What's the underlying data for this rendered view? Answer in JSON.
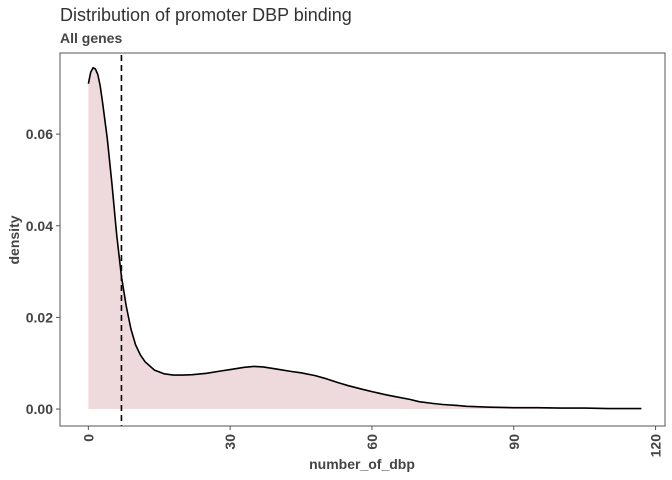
{
  "chart_data": {
    "type": "area",
    "title": "Distribution of promoter DBP binding",
    "subtitle": "All genes",
    "xlabel": "number_of_dbp",
    "ylabel": "density",
    "xlim": [
      -6,
      122
    ],
    "ylim": [
      -0.0037,
      0.0777
    ],
    "x_ticks": [
      0,
      30,
      60,
      90,
      120
    ],
    "x_tick_labels": [
      "0",
      "30",
      "60",
      "90",
      "120"
    ],
    "y_ticks": [
      0.0,
      0.02,
      0.04,
      0.06
    ],
    "y_tick_labels": [
      "0.00",
      "0.02",
      "0.04",
      "0.06"
    ],
    "grid": false,
    "vline": {
      "x": 7,
      "style": "dashed",
      "color": "#000000"
    },
    "fill_color": "#eed9dc",
    "line_color": "#000000",
    "series": [
      {
        "x": [
          0,
          0.5,
          1,
          1.5,
          2,
          2.5,
          3,
          4,
          5,
          6,
          7,
          8,
          9,
          10,
          11,
          12,
          14,
          16,
          18,
          20,
          22,
          25,
          28,
          30,
          33,
          35,
          37,
          40,
          43,
          45,
          48,
          50,
          53,
          55,
          58,
          60,
          63,
          65,
          68,
          70,
          73,
          75,
          78,
          80,
          85,
          90,
          95,
          100,
          105,
          110,
          115,
          117
        ],
        "y": [
          0.071,
          0.0735,
          0.0745,
          0.0742,
          0.073,
          0.0705,
          0.067,
          0.059,
          0.049,
          0.038,
          0.029,
          0.0225,
          0.0175,
          0.014,
          0.0118,
          0.0103,
          0.0085,
          0.0077,
          0.0074,
          0.0074,
          0.0075,
          0.0078,
          0.0083,
          0.0086,
          0.0091,
          0.0093,
          0.0092,
          0.0087,
          0.0082,
          0.0079,
          0.0073,
          0.0067,
          0.0057,
          0.0051,
          0.0043,
          0.0038,
          0.0031,
          0.0027,
          0.0021,
          0.0016,
          0.0012,
          0.001,
          0.0008,
          0.0006,
          0.0004,
          0.0003,
          0.0003,
          0.0002,
          0.0002,
          0.0001,
          0.0001,
          0.0001
        ]
      }
    ]
  }
}
